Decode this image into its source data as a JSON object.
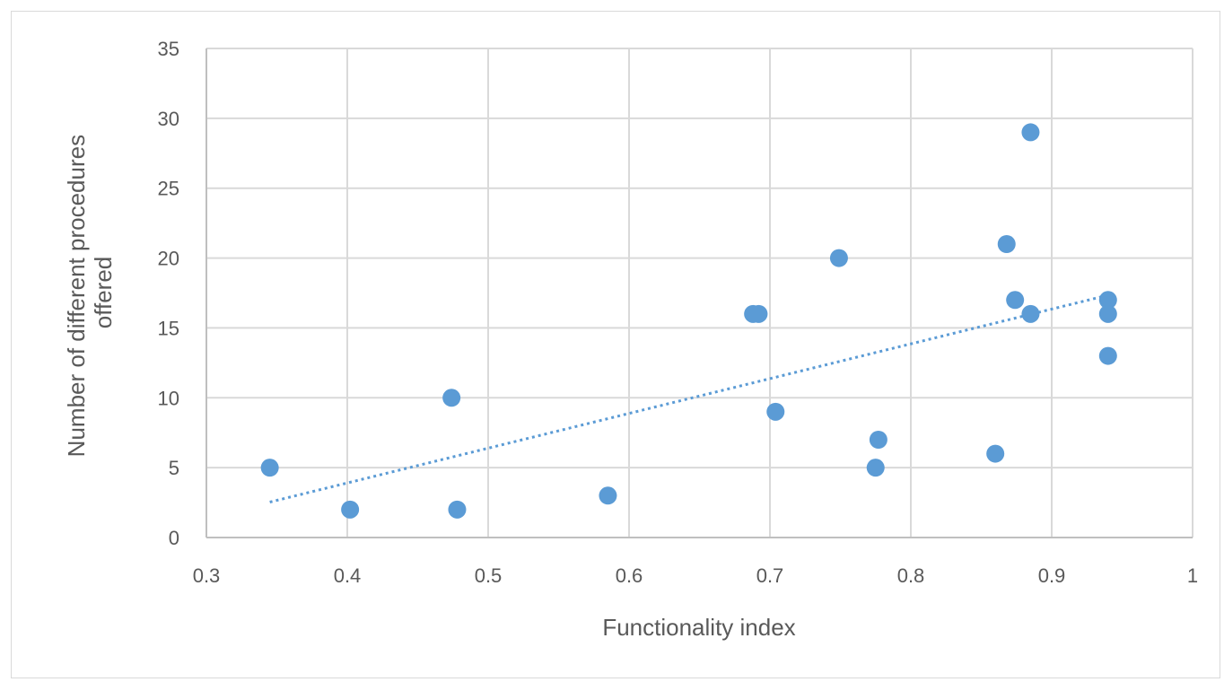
{
  "chart_data": {
    "type": "scatter",
    "title": "",
    "xlabel": "Functionality index",
    "ylabel_lines": [
      "Number of different  procedures",
      "offered"
    ],
    "xlim": [
      0.3,
      1
    ],
    "ylim": [
      0,
      35
    ],
    "x_ticks": [
      0.3,
      0.4,
      0.5,
      0.6,
      0.7,
      0.8,
      0.9,
      1
    ],
    "x_tick_labels": [
      "0.3",
      "0.4",
      "0.5",
      "0.6",
      "0.7",
      "0.8",
      "0.9",
      "1"
    ],
    "y_ticks": [
      0,
      5,
      10,
      15,
      20,
      25,
      30,
      35
    ],
    "y_tick_labels": [
      "0",
      "5",
      "10",
      "15",
      "20",
      "25",
      "30",
      "35"
    ],
    "grid": true,
    "legend": "none",
    "marker_color": "#5b9bd5",
    "trendline": {
      "type": "linear",
      "style": "dotted",
      "color": "#5b9bd5",
      "x_range": [
        0.345,
        0.94
      ]
    },
    "points": [
      {
        "x": 0.345,
        "y": 5
      },
      {
        "x": 0.402,
        "y": 2
      },
      {
        "x": 0.474,
        "y": 10
      },
      {
        "x": 0.478,
        "y": 2
      },
      {
        "x": 0.585,
        "y": 3
      },
      {
        "x": 0.688,
        "y": 16
      },
      {
        "x": 0.692,
        "y": 16
      },
      {
        "x": 0.704,
        "y": 9
      },
      {
        "x": 0.749,
        "y": 20
      },
      {
        "x": 0.775,
        "y": 5
      },
      {
        "x": 0.777,
        "y": 7
      },
      {
        "x": 0.86,
        "y": 6
      },
      {
        "x": 0.868,
        "y": 21
      },
      {
        "x": 0.874,
        "y": 17
      },
      {
        "x": 0.885,
        "y": 29
      },
      {
        "x": 0.885,
        "y": 16
      },
      {
        "x": 0.94,
        "y": 17
      },
      {
        "x": 0.94,
        "y": 16
      },
      {
        "x": 0.94,
        "y": 13
      }
    ]
  }
}
